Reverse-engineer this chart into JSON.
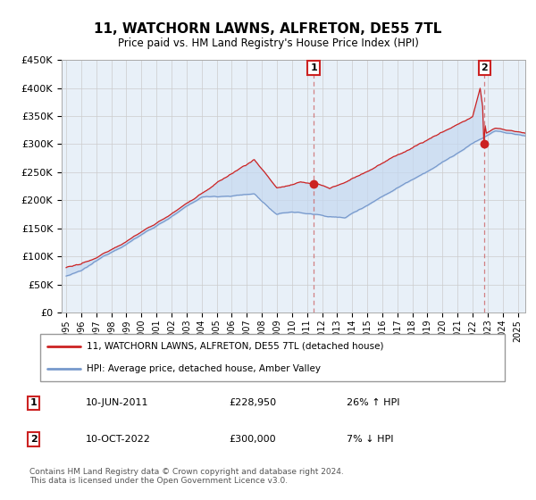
{
  "title": "11, WATCHORN LAWNS, ALFRETON, DE55 7TL",
  "subtitle": "Price paid vs. HM Land Registry's House Price Index (HPI)",
  "ylabel_ticks": [
    "£0",
    "£50K",
    "£100K",
    "£150K",
    "£200K",
    "£250K",
    "£300K",
    "£350K",
    "£400K",
    "£450K"
  ],
  "ytick_values": [
    0,
    50000,
    100000,
    150000,
    200000,
    250000,
    300000,
    350000,
    400000,
    450000
  ],
  "ylim": [
    0,
    450000
  ],
  "xlim_start": 1994.7,
  "xlim_end": 2025.5,
  "sale1_x": 2011.44,
  "sale1_y": 228950,
  "sale2_x": 2022.78,
  "sale2_y": 300000,
  "sale1_date": "10-JUN-2011",
  "sale1_price": "£228,950",
  "sale1_hpi": "26% ↑ HPI",
  "sale2_date": "10-OCT-2022",
  "sale2_price": "£300,000",
  "sale2_hpi": "7% ↓ HPI",
  "line1_color": "#cc2222",
  "line2_color": "#7799cc",
  "fill_color": "#e8f0f8",
  "annotation_box_color": "#cc2222",
  "grid_color": "#cccccc",
  "legend1_label": "11, WATCHORN LAWNS, ALFRETON, DE55 7TL (detached house)",
  "legend2_label": "HPI: Average price, detached house, Amber Valley",
  "footer": "Contains HM Land Registry data © Crown copyright and database right 2024.\nThis data is licensed under the Open Government Licence v3.0."
}
